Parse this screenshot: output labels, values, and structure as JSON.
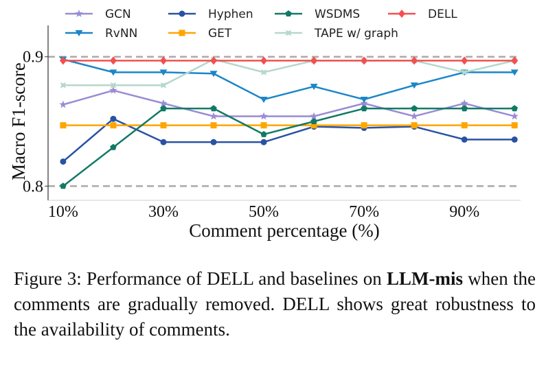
{
  "chart_data": {
    "type": "line",
    "title": "",
    "xlabel": "Comment percentage (%)",
    "ylabel": "Macro F1-score",
    "x": [
      10,
      20,
      30,
      40,
      50,
      60,
      70,
      80,
      90,
      100
    ],
    "xticks": [
      10,
      30,
      50,
      70,
      90
    ],
    "xtick_labels": [
      "10%",
      "30%",
      "50%",
      "70%",
      "90%"
    ],
    "yticks": [
      0.8,
      0.9
    ],
    "ytick_labels": [
      "0.8",
      "0.9"
    ],
    "xlim": [
      7,
      101.2
    ],
    "ylim": [
      0.789,
      0.911
    ],
    "reference_lines": [
      0.8,
      0.9
    ],
    "grid": false,
    "legend_placement": "top",
    "series": [
      {
        "name": "GCN",
        "color": "#9b8bd4",
        "marker": "star",
        "values": [
          0.863,
          0.874,
          0.864,
          0.854,
          0.854,
          0.854,
          0.864,
          0.854,
          0.864,
          0.854
        ]
      },
      {
        "name": "RvNN",
        "color": "#1a86c8",
        "marker": "triangle-down",
        "values": [
          0.898,
          0.888,
          0.888,
          0.887,
          0.867,
          0.877,
          0.867,
          0.878,
          0.888,
          0.888
        ]
      },
      {
        "name": "Hyphen",
        "color": "#2a52a3",
        "marker": "circle",
        "values": [
          0.819,
          0.852,
          0.834,
          0.834,
          0.834,
          0.846,
          0.845,
          0.846,
          0.836,
          0.836
        ]
      },
      {
        "name": "GET",
        "color": "#ffa500",
        "marker": "square",
        "values": [
          0.847,
          0.847,
          0.847,
          0.847,
          0.847,
          0.847,
          0.847,
          0.847,
          0.847,
          0.847
        ]
      },
      {
        "name": "WSDMS",
        "color": "#117a65",
        "marker": "pentagon",
        "values": [
          0.8,
          0.83,
          0.86,
          0.86,
          0.84,
          0.85,
          0.86,
          0.86,
          0.86,
          0.86
        ]
      },
      {
        "name": "TAPE w/ graph",
        "color": "#b5d8cb",
        "marker": "x",
        "values": [
          0.878,
          0.878,
          0.878,
          0.898,
          0.888,
          0.897,
          0.897,
          0.897,
          0.888,
          0.897
        ]
      },
      {
        "name": "DELL",
        "color": "#f25050",
        "marker": "diamond",
        "values": [
          0.897,
          0.897,
          0.897,
          0.897,
          0.897,
          0.897,
          0.897,
          0.897,
          0.897,
          0.897
        ]
      }
    ]
  },
  "caption": {
    "prefix": "Figure 3: Performance of DELL and baselines on ",
    "bold": "LLM-mis",
    "suffix": " when the comments are gradually removed. DELL shows great robustness to the availability of comments."
  }
}
